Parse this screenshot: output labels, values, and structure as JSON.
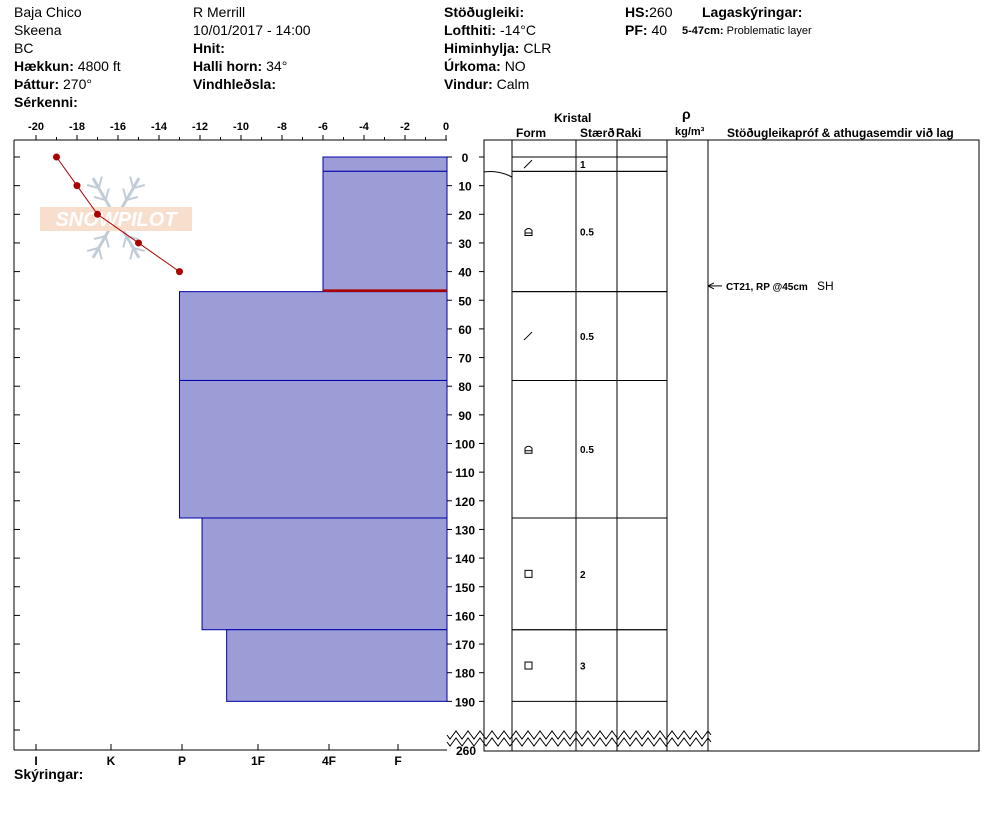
{
  "header": {
    "location": "Baja Chico",
    "range": "Skeena",
    "state": "BC",
    "elevation_label": "Hækkun:",
    "elevation_value": "4800 ft",
    "aspect_label": "Þáttur:",
    "aspect_value": "270°",
    "features_label": "Sérkenni:",
    "observer": "R Merrill",
    "datetime": "10/01/2017 - 14:00",
    "coords_label": "Hnit:",
    "slope_label": "Halli horn:",
    "slope_value": "34°",
    "wind_loading_label": "Vindhleðsla:",
    "stability_label": "Stöðugleiki:",
    "air_temp_label": "Lofthiti:",
    "air_temp_value": "-14°C",
    "sky_label": "Himinhylja:",
    "sky_value": "CLR",
    "precip_label": "Úrkoma:",
    "precip_value": "NO",
    "wind_label": "Vindur:",
    "wind_value": "Calm",
    "hs_label": "HS:",
    "hs_value": "260",
    "pf_label": "PF:",
    "pf_value": "40",
    "layer_notes_label": "Lagaskýringar:",
    "layer_note_range": "5-47cm:",
    "layer_note_text": "Problematic layer"
  },
  "footer": {
    "comments_label": "Skýringar:"
  },
  "watermark": "SNOWPILOT",
  "colors": {
    "layer_fill": "#9c9cd6",
    "layer_line": "#0000aa",
    "temp_line": "#aa0000",
    "problem_line": "#b00000"
  },
  "chart_data": {
    "type": "snow-profile",
    "temperature_axis": {
      "ticks": [
        -20,
        -18,
        -16,
        -14,
        -12,
        -10,
        -8,
        -6,
        -4,
        -2,
        0
      ],
      "range": [
        -20,
        0
      ]
    },
    "hardness_axis": {
      "labels": [
        "I",
        "K",
        "P",
        "1F",
        "4F",
        "F"
      ]
    },
    "depth_axis": {
      "ticks": [
        0,
        10,
        20,
        30,
        40,
        50,
        60,
        70,
        80,
        90,
        100,
        110,
        120,
        130,
        140,
        150,
        160,
        170,
        180,
        190
      ],
      "total_label": "260",
      "range": [
        0,
        190
      ]
    },
    "temperature_profile": [
      {
        "depth": 0,
        "temp": -19.0
      },
      {
        "depth": 10,
        "temp": -18.0
      },
      {
        "depth": 20,
        "temp": -17.0
      },
      {
        "depth": 30,
        "temp": -15.0
      },
      {
        "depth": 40,
        "temp": -13.0
      }
    ],
    "layers": [
      {
        "top": 0,
        "bottom": 5,
        "hardness_temp": -6.0,
        "form": "new-snow",
        "size": "1"
      },
      {
        "top": 5,
        "bottom": 47,
        "hardness_temp": -6.0,
        "form": "faceted-rounded",
        "size": "0.5"
      },
      {
        "top": 47,
        "bottom": 78,
        "hardness_temp": -13.0,
        "form": "new-snow",
        "size": "0.5"
      },
      {
        "top": 78,
        "bottom": 126,
        "hardness_temp": -13.0,
        "form": "faceted-rounded",
        "size": "0.5"
      },
      {
        "top": 126,
        "bottom": 165,
        "hardness_temp": -11.9,
        "form": "faceted",
        "size": "2"
      },
      {
        "top": 165,
        "bottom": 190,
        "hardness_temp": -10.7,
        "form": "faceted",
        "size": "3"
      }
    ],
    "problem_layer_depth": 47,
    "table_headers": {
      "crystal": "Kristal",
      "form": "Form",
      "size": "Stærð",
      "moisture": "Raki",
      "density_symbol": "ρ",
      "density_unit": "kg/m³",
      "tests": "Stöðugleikapróf & athugasemdir við lag"
    },
    "tests": [
      {
        "depth": 45,
        "result": "CT21, RP @45cm",
        "suffix": "SH"
      }
    ]
  }
}
